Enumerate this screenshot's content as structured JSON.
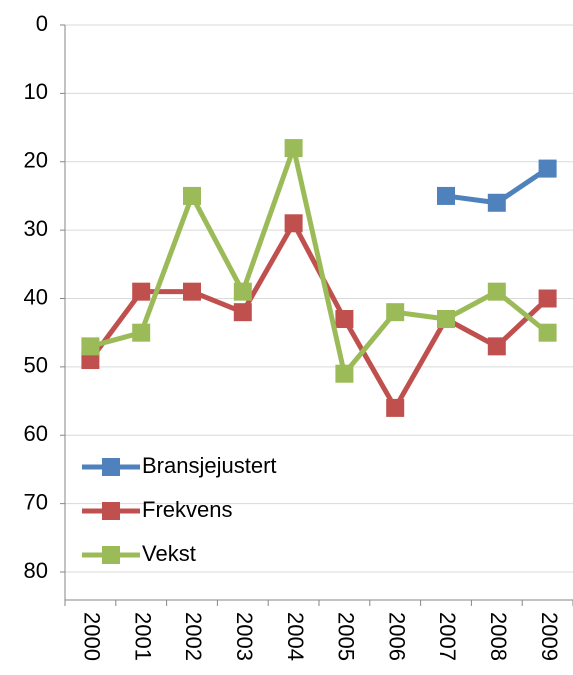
{
  "chart_data": {
    "type": "line",
    "categories": [
      "2000",
      "2001",
      "2002",
      "2003",
      "2004",
      "2005",
      "2006",
      "2007",
      "2008",
      "2009"
    ],
    "series": [
      {
        "name": "Bransjejustert",
        "color": "#4f81bd",
        "values": [
          null,
          null,
          null,
          null,
          null,
          null,
          null,
          25,
          26,
          21
        ]
      },
      {
        "name": "Frekvens",
        "color": "#c0504d",
        "values": [
          49,
          39,
          39,
          42,
          29,
          43,
          56,
          43,
          47,
          40
        ]
      },
      {
        "name": "Vekst",
        "color": "#9bbb59",
        "values": [
          47,
          45,
          25,
          39,
          18,
          51,
          42,
          43,
          39,
          45
        ]
      }
    ],
    "ylim": [
      0,
      80
    ],
    "yticks": [
      0,
      10,
      20,
      30,
      40,
      50,
      60,
      70,
      80
    ],
    "y_inverted": true,
    "grid": true,
    "legend": "lower-left"
  }
}
